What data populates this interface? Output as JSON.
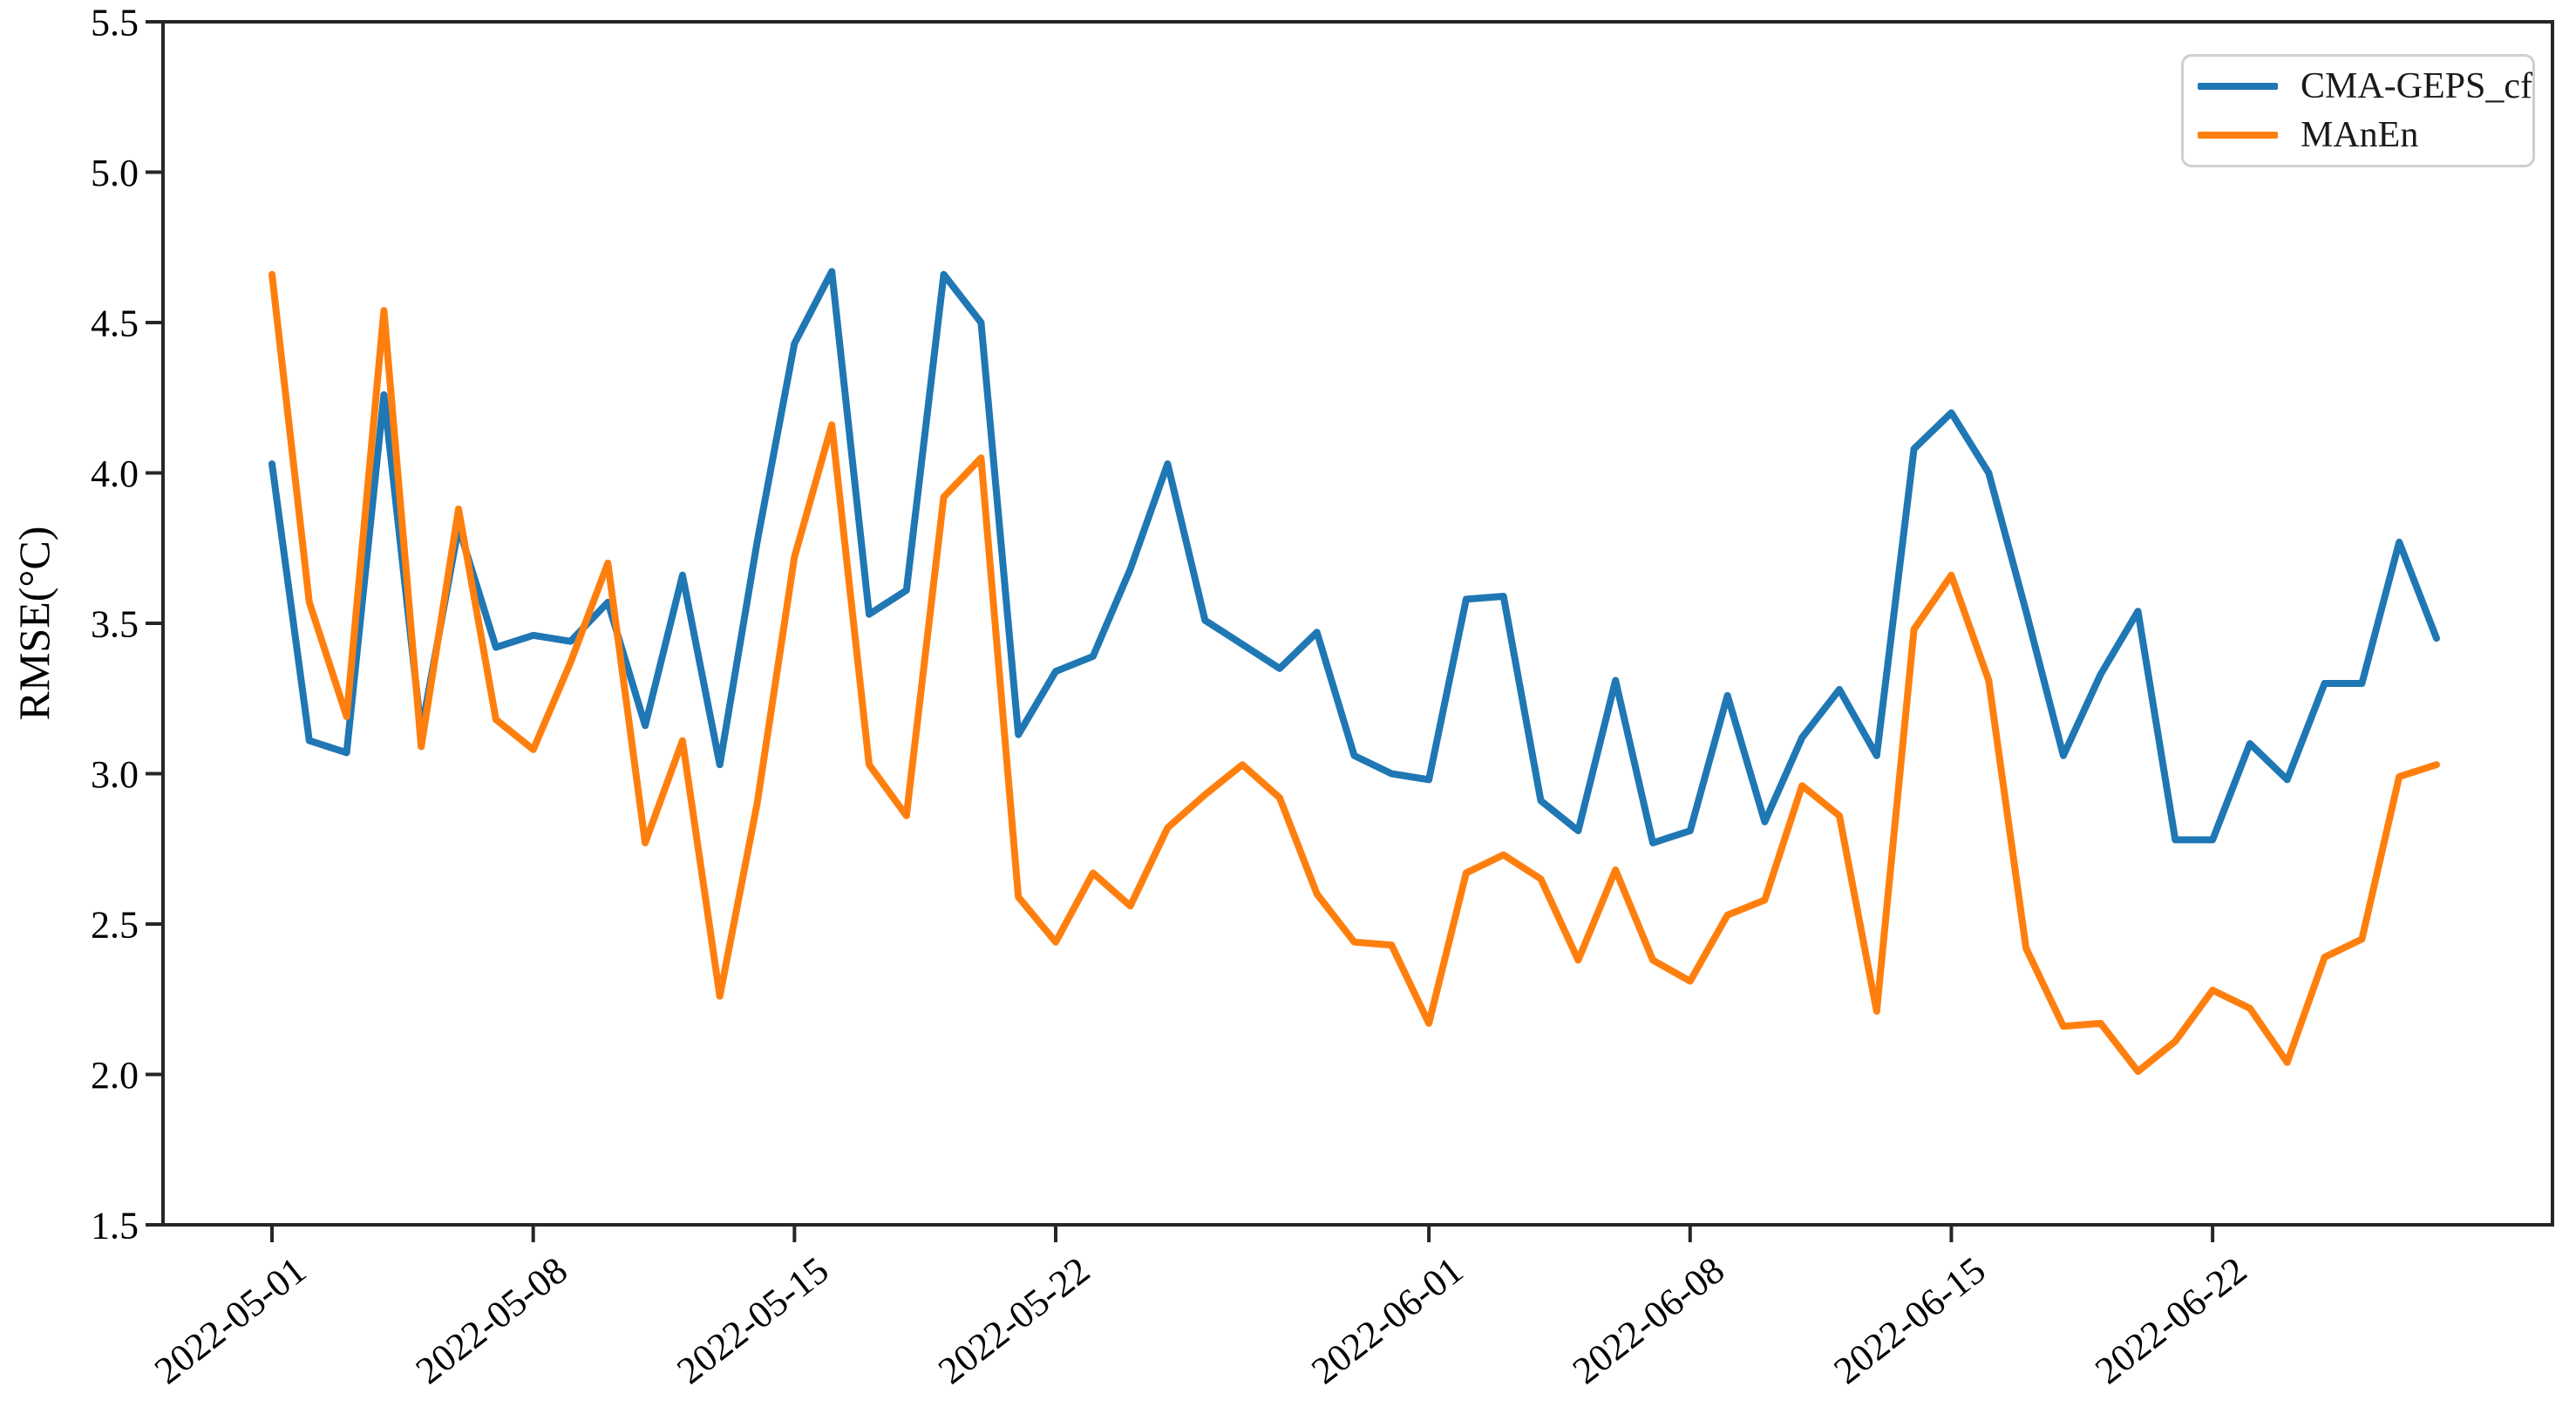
{
  "chart_data": {
    "type": "line",
    "title": "",
    "xlabel": "",
    "ylabel": "RMSE(°C)",
    "ylim": [
      1.5,
      5.5
    ],
    "yticks": [
      1.5,
      2.0,
      2.5,
      3.0,
      3.5,
      4.0,
      4.5,
      5.0,
      5.5
    ],
    "grid": false,
    "legend_position": "upper right",
    "x": [
      "2022-05-01",
      "2022-05-02",
      "2022-05-03",
      "2022-05-04",
      "2022-05-05",
      "2022-05-06",
      "2022-05-07",
      "2022-05-08",
      "2022-05-09",
      "2022-05-10",
      "2022-05-11",
      "2022-05-12",
      "2022-05-13",
      "2022-05-14",
      "2022-05-15",
      "2022-05-16",
      "2022-05-17",
      "2022-05-18",
      "2022-05-19",
      "2022-05-20",
      "2022-05-21",
      "2022-05-22",
      "2022-05-23",
      "2022-05-24",
      "2022-05-25",
      "2022-05-26",
      "2022-05-27",
      "2022-05-28",
      "2022-05-29",
      "2022-05-30",
      "2022-05-31",
      "2022-06-01",
      "2022-06-02",
      "2022-06-03",
      "2022-06-04",
      "2022-06-05",
      "2022-06-06",
      "2022-06-07",
      "2022-06-08",
      "2022-06-09",
      "2022-06-10",
      "2022-06-11",
      "2022-06-12",
      "2022-06-13",
      "2022-06-14",
      "2022-06-15",
      "2022-06-16",
      "2022-06-17",
      "2022-06-18",
      "2022-06-19",
      "2022-06-20",
      "2022-06-21",
      "2022-06-22",
      "2022-06-23",
      "2022-06-24",
      "2022-06-25",
      "2022-06-26",
      "2022-06-27",
      "2022-06-28"
    ],
    "xtick_indices": [
      0,
      7,
      14,
      21,
      31,
      38,
      45,
      52
    ],
    "xtick_labels": [
      "2022-05-01",
      "2022-05-08",
      "2022-05-15",
      "2022-05-22",
      "2022-06-01",
      "2022-06-08",
      "2022-06-15",
      "2022-06-22"
    ],
    "series": [
      {
        "name": "CMA-GEPS_cf",
        "color": "#1f77b4",
        "values": [
          4.03,
          3.11,
          3.07,
          4.26,
          3.14,
          3.82,
          3.42,
          3.46,
          3.44,
          3.57,
          3.16,
          3.66,
          3.03,
          3.77,
          4.43,
          4.67,
          3.53,
          3.61,
          4.66,
          4.5,
          3.13,
          3.34,
          3.39,
          3.68,
          4.03,
          3.51,
          3.43,
          3.35,
          3.47,
          3.06,
          3.0,
          2.98,
          3.58,
          3.59,
          2.91,
          2.81,
          3.31,
          2.77,
          2.81,
          3.26,
          2.84,
          3.12,
          3.28,
          3.06,
          4.08,
          4.2,
          4.0,
          3.54,
          3.06,
          3.33,
          3.54,
          2.78,
          2.78,
          3.1,
          2.98,
          3.3,
          3.3,
          3.77,
          3.45
        ]
      },
      {
        "name": "MAnEn",
        "color": "#ff7f0e",
        "values": [
          4.66,
          3.57,
          3.19,
          4.54,
          3.09,
          3.88,
          3.18,
          3.08,
          3.37,
          3.7,
          2.77,
          3.11,
          2.26,
          2.9,
          3.72,
          4.16,
          3.03,
          2.86,
          3.92,
          4.05,
          2.59,
          2.44,
          2.67,
          2.56,
          2.82,
          2.93,
          3.03,
          2.92,
          2.6,
          2.44,
          2.43,
          2.17,
          2.67,
          2.73,
          2.65,
          2.38,
          2.68,
          2.38,
          2.31,
          2.53,
          2.58,
          2.96,
          2.86,
          2.21,
          3.48,
          3.66,
          3.31,
          2.42,
          2.16,
          2.17,
          2.01,
          2.11,
          2.28,
          2.22,
          2.04,
          2.39,
          2.45,
          2.99,
          3.03
        ]
      }
    ]
  },
  "legend": {
    "items": [
      {
        "label": "CMA-GEPS_cf",
        "color": "#1f77b4"
      },
      {
        "label": "MAnEn",
        "color": "#ff7f0e"
      }
    ]
  },
  "axes": {
    "spine_color": "#262626",
    "text_color": "#000000"
  }
}
